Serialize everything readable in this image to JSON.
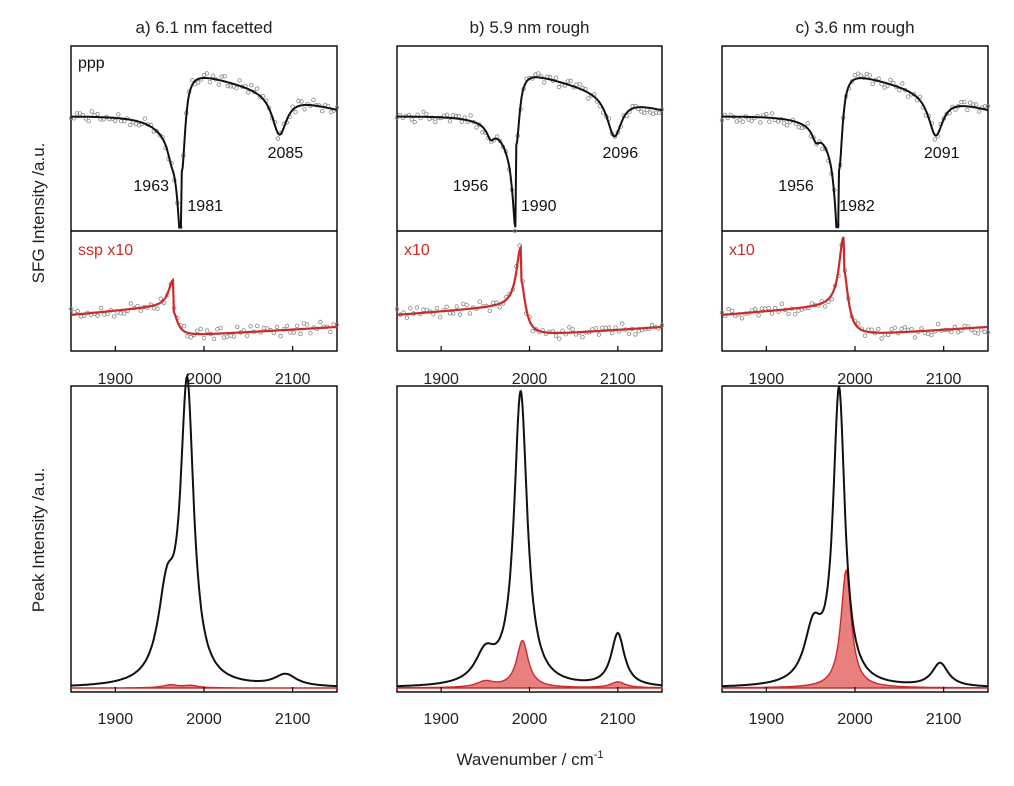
{
  "figure": {
    "ylabel_top": "SFG Intensity /a.u.",
    "ylabel_bottom": "Peak Intensity /a.u.",
    "xlabel_main": "Wavenumber / cm",
    "xlabel_sup": "-1",
    "colors": {
      "black": "#111111",
      "red": "#cc2a2a",
      "fill": "#e46a6a",
      "dots": "#888888"
    }
  },
  "chart_data": [
    {
      "type": "line",
      "title": "a) 6.1 nm facetted",
      "xlim": [
        1850,
        2150
      ],
      "xticks": [
        1900,
        2000,
        2100
      ],
      "ppp": {
        "label": "ppp",
        "center": 1975,
        "drop": 1,
        "peaks": [
          {
            "label": "1963",
            "x": 1963
          },
          {
            "label": "1981",
            "x": 1981
          },
          {
            "label": "2085",
            "x": 2085
          }
        ]
      },
      "ssp": {
        "label": "ssp x10",
        "center": 1965,
        "dir": 1,
        "amp": 0.35
      },
      "peak_fit": {
        "black": [
          {
            "x": 1958,
            "h": 0.28,
            "w": 12
          },
          {
            "x": 1981,
            "h": 1.0,
            "w": 9
          },
          {
            "x": 2092,
            "h": 0.04,
            "w": 15
          }
        ],
        "red": [
          {
            "x": 1962,
            "h": 0.01,
            "w": 10
          },
          {
            "x": 1985,
            "h": 0.008,
            "w": 10
          }
        ]
      }
    },
    {
      "type": "line",
      "title": "b) 5.9 nm rough",
      "xlim": [
        1850,
        2150
      ],
      "xticks": [
        1900,
        2000,
        2100
      ],
      "ppp": {
        "label": "",
        "center": 1985,
        "drop": 0.75,
        "peaks": [
          {
            "label": "1956",
            "x": 1956
          },
          {
            "label": "1990",
            "x": 1990
          },
          {
            "label": "2096",
            "x": 2096
          }
        ]
      },
      "ssp": {
        "label": "x10",
        "center": 1990,
        "dir": 1,
        "amp": 0.8
      },
      "peak_fit": {
        "black": [
          {
            "x": 1950,
            "h": 0.1,
            "w": 14
          },
          {
            "x": 1990,
            "h": 1.0,
            "w": 9
          },
          {
            "x": 2100,
            "h": 0.18,
            "w": 9
          }
        ],
        "red": [
          {
            "x": 1950,
            "h": 0.02,
            "w": 12
          },
          {
            "x": 1992,
            "h": 0.16,
            "w": 8
          },
          {
            "x": 2100,
            "h": 0.02,
            "w": 10
          }
        ]
      }
    },
    {
      "type": "line",
      "title": "c) 3.6 nm rough",
      "xlim": [
        1850,
        2150
      ],
      "xticks": [
        1900,
        2000,
        2100
      ],
      "ppp": {
        "label": "",
        "center": 1982,
        "drop": 1,
        "peaks": [
          {
            "label": "1956",
            "x": 1956
          },
          {
            "label": "1982",
            "x": 1982
          },
          {
            "label": "2091",
            "x": 2091
          }
        ]
      },
      "ssp": {
        "label": "x10",
        "center": 1987,
        "dir": 1,
        "amp": 0.95
      },
      "peak_fit": {
        "black": [
          {
            "x": 1953,
            "h": 0.18,
            "w": 12
          },
          {
            "x": 1982,
            "h": 1.0,
            "w": 8
          },
          {
            "x": 2096,
            "h": 0.08,
            "w": 11
          }
        ],
        "red": [
          {
            "x": 1990,
            "h": 0.4,
            "w": 7
          }
        ]
      }
    }
  ]
}
